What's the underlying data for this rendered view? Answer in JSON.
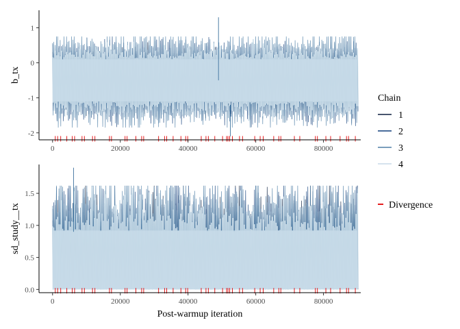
{
  "chart_data": [
    {
      "type": "line",
      "ylabel": "b_tx",
      "xlabel": "",
      "xlim": [
        -4000,
        91000
      ],
      "ylim": [
        -2.2,
        1.5
      ],
      "x_ticks": [
        0,
        20000,
        40000,
        60000,
        80000
      ],
      "x_tick_labels": [
        "0",
        "20000",
        "40000",
        "60000",
        "80000"
      ],
      "y_ticks": [
        -2,
        -1,
        0,
        1
      ],
      "y_tick_labels": [
        "-2",
        "-1",
        "0",
        "1"
      ],
      "trace_band": {
        "center": -0.5,
        "typical_low": -1.3,
        "typical_high": 0.3,
        "min": -2.1,
        "max": 1.3,
        "max_at": 49000
      },
      "series": [
        {
          "name": "1",
          "color": "#0b1f3f"
        },
        {
          "name": "2",
          "color": "#0f3d7a"
        },
        {
          "name": "3",
          "color": "#4e7ea6"
        },
        {
          "name": "4",
          "color": "#c7dae8"
        }
      ],
      "divergences": {
        "y": -2.17,
        "x": [
          800,
          1500,
          2400,
          4200,
          5800,
          6500,
          8700,
          9400,
          11800,
          12500,
          16800,
          17400,
          21400,
          22000,
          24600,
          26300,
          26900,
          31300,
          33100,
          33700,
          35600,
          37900,
          39300,
          39900,
          43900,
          45300,
          46000,
          47900,
          50200,
          51400,
          51800,
          52300,
          53100,
          55200,
          56100,
          59700,
          61300,
          62200,
          65300,
          66800,
          67400,
          71400,
          73000,
          77600,
          78200,
          80700,
          82100,
          84900,
          86800,
          87400,
          89400
        ]
      }
    },
    {
      "type": "line",
      "ylabel": "sd_study__tx",
      "xlabel": "Post-warmup iteration",
      "xlim": [
        -4000,
        91000
      ],
      "ylim": [
        -0.05,
        1.95
      ],
      "x_ticks": [
        0,
        20000,
        40000,
        60000,
        80000
      ],
      "x_tick_labels": [
        "0",
        "20000",
        "40000",
        "60000",
        "80000"
      ],
      "y_ticks": [
        0,
        0.5,
        1,
        1.5
      ],
      "y_tick_labels": [
        "0.0",
        "0.5",
        "1.0",
        "1.5"
      ],
      "trace_band": {
        "low": 0.0,
        "typical_high": 1.05,
        "max": 1.9,
        "max_at": 6200
      },
      "series": [
        {
          "name": "1",
          "color": "#0b1f3f"
        },
        {
          "name": "2",
          "color": "#0f3d7a"
        },
        {
          "name": "3",
          "color": "#4e7ea6"
        },
        {
          "name": "4",
          "color": "#c7dae8"
        }
      ],
      "divergences": {
        "y": -0.02,
        "x": [
          800,
          1500,
          2400,
          4200,
          5800,
          6500,
          8700,
          9400,
          11800,
          12500,
          16800,
          17400,
          21400,
          22000,
          24600,
          26300,
          26900,
          31300,
          33100,
          33700,
          35600,
          37900,
          39300,
          39900,
          43900,
          45300,
          46000,
          47900,
          50200,
          51400,
          51800,
          52300,
          53100,
          55200,
          56100,
          59700,
          61300,
          62200,
          65300,
          66800,
          67400,
          71400,
          73000,
          77600,
          78200,
          80700,
          82100,
          84900,
          86800,
          87400,
          89400
        ]
      }
    }
  ],
  "legend": {
    "title": "Chain",
    "items": [
      {
        "label": "1",
        "color": "#0b1f3f"
      },
      {
        "label": "2",
        "color": "#0f3d7a"
      },
      {
        "label": "3",
        "color": "#4e7ea6"
      },
      {
        "label": "4",
        "color": "#c7dae8"
      }
    ],
    "divergence_label": "Divergence",
    "divergence_color": "#e41a1c"
  }
}
